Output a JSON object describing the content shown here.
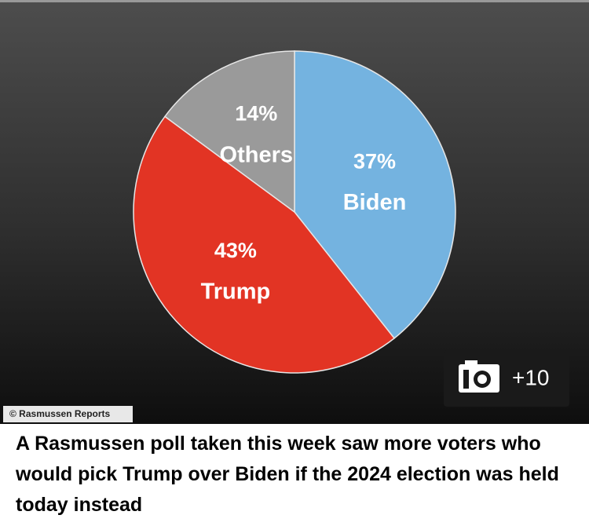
{
  "chart_data": {
    "type": "pie",
    "categories": [
      "Biden",
      "Trump",
      "Others"
    ],
    "values": [
      37,
      43,
      14
    ],
    "value_labels": [
      "37%",
      "43%",
      "14%"
    ],
    "colors": [
      "#74b3e0",
      "#e23424",
      "#9a9a9a"
    ]
  },
  "credit": "© Rasmussen Reports",
  "gallery_count": "+10",
  "caption": "A Rasmussen poll taken this week saw more voters who would pick Trump over Biden if the 2024 election was held today instead"
}
